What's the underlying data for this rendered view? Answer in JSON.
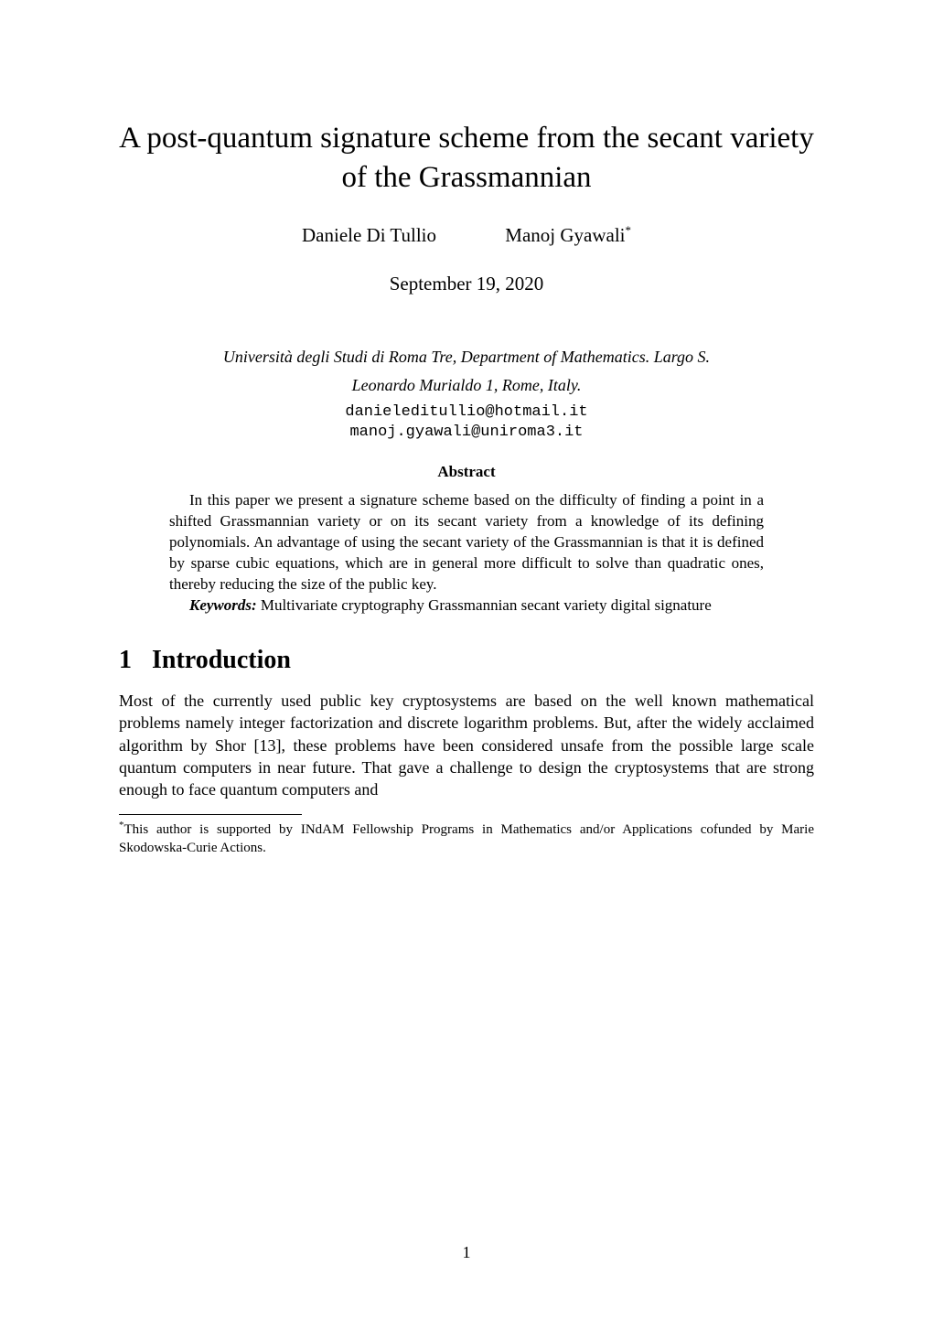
{
  "title": "A post-quantum signature scheme from the secant variety of the Grassmannian",
  "authors": [
    {
      "name": "Daniele Di Tullio",
      "marker": ""
    },
    {
      "name": "Manoj Gyawali",
      "marker": "*"
    }
  ],
  "date": "September 19, 2020",
  "affiliation_line1": "Università degli Studi di Roma Tre, Department of Mathematics. Largo S.",
  "affiliation_line2": "Leonardo Murialdo 1, Rome, Italy.",
  "emails": [
    "danieleditullio@hotmail.it",
    "manoj.gyawali@uniroma3.it"
  ],
  "abstract_title": "Abstract",
  "abstract_p1": "In this paper we present a signature scheme based on the difficulty of finding a point in a shifted Grassmannian variety or on its secant variety from a knowledge of its defining polynomials. An advantage of using the secant variety of the Grassmannian is that it is defined by sparse cubic equations, which are in general more difficult to solve than quadratic ones, thereby reducing the size of the public key.",
  "keywords_label": "Keywords:",
  "keywords_text": " Multivariate cryptography Grassmannian secant variety digital signature",
  "section": {
    "number": "1",
    "title": "Introduction"
  },
  "intro_text": "Most of the currently used public key cryptosystems are based on the well known mathematical problems namely integer factorization and discrete logarithm problems. But, after the widely acclaimed algorithm by Shor [13], these problems have been considered unsafe from the possible large scale quantum computers in near future. That gave a challenge to design the cryptosystems that are strong enough to face quantum computers and",
  "footnote_marker": "*",
  "footnote_text": "This author is supported by INdAM Fellowship Programs in Mathematics and/or Applications cofunded by Marie Skodowska-Curie Actions.",
  "page_number": "1"
}
